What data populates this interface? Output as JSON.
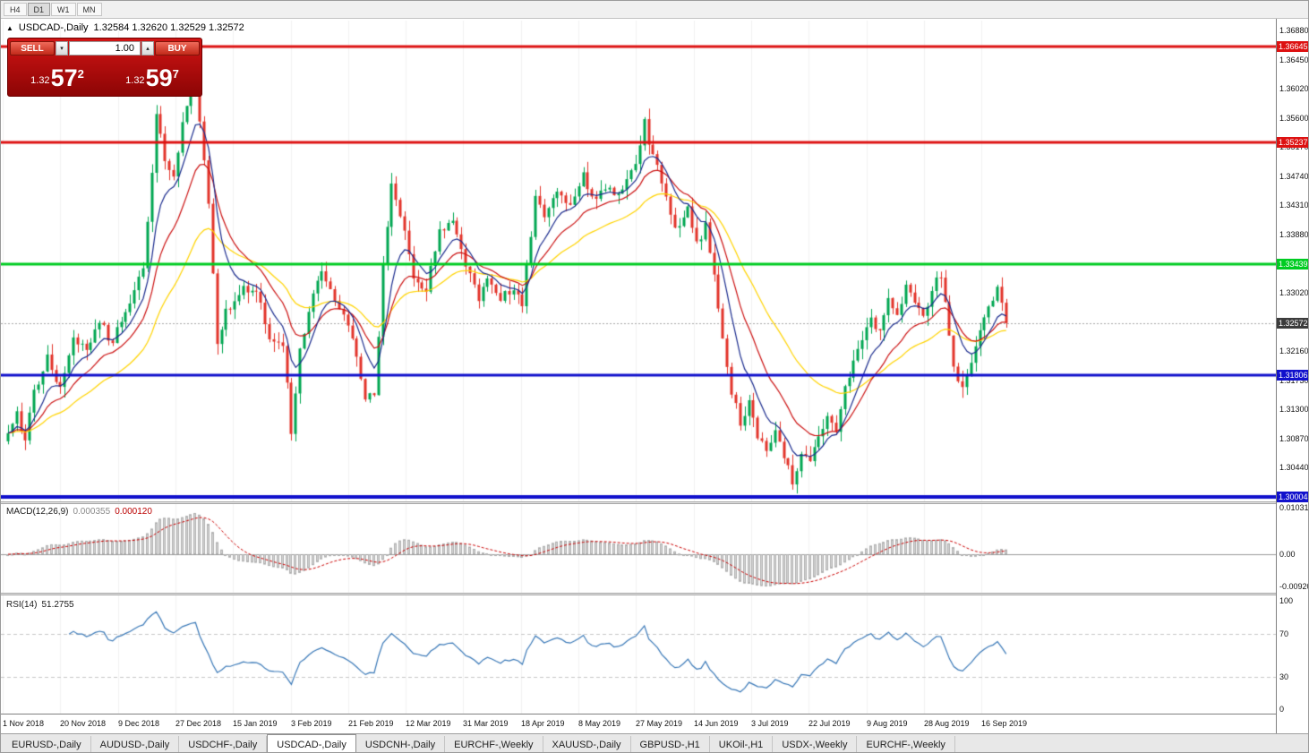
{
  "icons": {
    "symbol_arrow": "▲",
    "volume_down": "▾",
    "volume_up": "▴"
  },
  "colors": {
    "bull": "#00a651",
    "bear": "#e3342a",
    "background": "#ffffff",
    "macd_hist": "#d4d4d4",
    "macd_signal": "#cc0000",
    "rsi_line": "#3a79b8",
    "resistance_red": "#dd1111",
    "support_green": "#00cc22",
    "support_blue": "#1111cc",
    "current_price_tag": "#3c3c3c"
  },
  "toolbar": {
    "timeframes": [
      {
        "label": "H4",
        "active": false
      },
      {
        "label": "D1",
        "active": true
      },
      {
        "label": "W1",
        "active": false
      },
      {
        "label": "MN",
        "active": false
      }
    ]
  },
  "chart": {
    "title_symbol": "USDCAD-,Daily",
    "title_ohlc": "1.32584 1.32620 1.32529 1.32572",
    "trade_panel": {
      "sell_label": "SELL",
      "buy_label": "BUY",
      "volume": "1.00",
      "sell_price": {
        "prefix": "1.32",
        "big": "57",
        "sup": "2"
      },
      "buy_price": {
        "prefix": "1.32",
        "big": "59",
        "sup": "7"
      }
    },
    "price_axis": {
      "ticks": [
        "1.36880",
        "1.36450",
        "1.36020",
        "1.35600",
        "1.35170",
        "1.34740",
        "1.34310",
        "1.33880",
        "1.33450",
        "1.33020",
        "1.32590",
        "1.32160",
        "1.31730",
        "1.31300",
        "1.30870",
        "1.30440",
        "1.30010"
      ]
    },
    "levels": [
      {
        "label": "1.36645",
        "price": 1.36645,
        "color": "#dd1111",
        "thickness": 3
      },
      {
        "label": "1.35237",
        "price": 1.35237,
        "color": "#dd1111",
        "thickness": 3
      },
      {
        "label": "1.33439",
        "price": 1.33439,
        "color": "#00cc22",
        "thickness": 3
      },
      {
        "label": "1.31806",
        "price": 1.31806,
        "color": "#1111cc",
        "thickness": 3
      },
      {
        "label": "1.30004",
        "price": 1.30004,
        "color": "#1111cc",
        "thickness": 4
      }
    ],
    "current_price": {
      "label": "1.32572",
      "price": 1.32572
    },
    "indicators": {
      "macd": {
        "name": "MACD(12,26,9)",
        "main_value": "0.000355",
        "signal_value": "0.000120",
        "axis": [
          "0.010311",
          "0.00",
          "-0.009203"
        ],
        "params": {
          "fast": 12,
          "slow": 26,
          "signal": 9
        }
      },
      "rsi": {
        "name": "RSI(14)",
        "value": "51.2755",
        "axis": [
          "100",
          "70",
          "30",
          "0"
        ],
        "levels": [
          70,
          30
        ],
        "period": 14
      }
    },
    "dates": [
      "1 Nov 2018",
      "20 Nov 2018",
      "9 Dec 2018",
      "27 Dec 2018",
      "15 Jan 2019",
      "3 Feb 2019",
      "21 Feb 2019",
      "12 Mar 2019",
      "31 Mar 2019",
      "18 Apr 2019",
      "8 May 2019",
      "27 May 2019",
      "14 Jun 2019",
      "3 Jul 2019",
      "22 Jul 2019",
      "9 Aug 2019",
      "28 Aug 2019",
      "16 Sep 2019"
    ],
    "chart_data": {
      "type": "candlestick",
      "symbol": "USDCAD",
      "timeframe": "Daily",
      "x_range": [
        "1 Nov 2018",
        "27 Sep 2019"
      ],
      "y_range": [
        1.296,
        1.37
      ],
      "candle_count": 230,
      "last_close": 1.32572,
      "close_anchors": [
        [
          0,
          1.3095
        ],
        [
          2,
          1.313
        ],
        [
          4,
          1.308
        ],
        [
          6,
          1.315
        ],
        [
          9,
          1.32
        ],
        [
          12,
          1.317
        ],
        [
          15,
          1.323
        ],
        [
          18,
          1.321
        ],
        [
          21,
          1.326
        ],
        [
          24,
          1.322
        ],
        [
          27,
          1.328
        ],
        [
          31,
          1.333
        ],
        [
          34,
          1.356
        ],
        [
          36,
          1.35
        ],
        [
          38,
          1.348
        ],
        [
          40,
          1.356
        ],
        [
          43,
          1.3625
        ],
        [
          44,
          1.356
        ],
        [
          46,
          1.343
        ],
        [
          48,
          1.323
        ],
        [
          50,
          1.327
        ],
        [
          54,
          1.331
        ],
        [
          58,
          1.329
        ],
        [
          60,
          1.324
        ],
        [
          63,
          1.323
        ],
        [
          65,
          1.31
        ],
        [
          67,
          1.323
        ],
        [
          72,
          1.333
        ],
        [
          76,
          1.329
        ],
        [
          79,
          1.324
        ],
        [
          82,
          1.3135
        ],
        [
          84,
          1.315
        ],
        [
          86,
          1.334
        ],
        [
          88,
          1.346
        ],
        [
          90,
          1.342
        ],
        [
          93,
          1.333
        ],
        [
          96,
          1.331
        ],
        [
          99,
          1.339
        ],
        [
          102,
          1.342
        ],
        [
          105,
          1.335
        ],
        [
          108,
          1.329
        ],
        [
          110,
          1.333
        ],
        [
          113,
          1.33
        ],
        [
          116,
          1.331
        ],
        [
          118,
          1.329
        ],
        [
          121,
          1.344
        ],
        [
          123,
          1.341
        ],
        [
          126,
          1.346
        ],
        [
          129,
          1.343
        ],
        [
          132,
          1.347
        ],
        [
          134,
          1.344
        ],
        [
          137,
          1.346
        ],
        [
          140,
          1.344
        ],
        [
          142,
          1.347
        ],
        [
          144,
          1.349
        ],
        [
          146,
          1.3555
        ],
        [
          147,
          1.351
        ],
        [
          149,
          1.348
        ],
        [
          151,
          1.344
        ],
        [
          153,
          1.34
        ],
        [
          156,
          1.342
        ],
        [
          158,
          1.337
        ],
        [
          160,
          1.34
        ],
        [
          162,
          1.333
        ],
        [
          164,
          1.323
        ],
        [
          166,
          1.316
        ],
        [
          168,
          1.311
        ],
        [
          170,
          1.314
        ],
        [
          172,
          1.308
        ],
        [
          174,
          1.307
        ],
        [
          176,
          1.311
        ],
        [
          178,
          1.305
        ],
        [
          180,
          1.302
        ],
        [
          182,
          1.306
        ],
        [
          184,
          1.304
        ],
        [
          186,
          1.308
        ],
        [
          188,
          1.312
        ],
        [
          190,
          1.309
        ],
        [
          192,
          1.315
        ],
        [
          194,
          1.319
        ],
        [
          196,
          1.323
        ],
        [
          198,
          1.327
        ],
        [
          200,
          1.325
        ],
        [
          202,
          1.33
        ],
        [
          204,
          1.327
        ],
        [
          206,
          1.331
        ],
        [
          208,
          1.329
        ],
        [
          210,
          1.326
        ],
        [
          212,
          1.331
        ],
        [
          214,
          1.333
        ],
        [
          215,
          1.329
        ],
        [
          217,
          1.319
        ],
        [
          219,
          1.3155
        ],
        [
          221,
          1.32
        ],
        [
          223,
          1.324
        ],
        [
          225,
          1.327
        ],
        [
          227,
          1.33
        ],
        [
          229,
          1.32572
        ]
      ],
      "moving_averages": [
        {
          "color": "#1a2b8e",
          "period": 8
        },
        {
          "color": "#cc1111",
          "period": 16
        },
        {
          "color": "#ffd400",
          "period": 34
        }
      ]
    }
  },
  "tabs": [
    {
      "label": "EURUSD-,Daily",
      "active": false
    },
    {
      "label": "AUDUSD-,Daily",
      "active": false
    },
    {
      "label": "USDCHF-,Daily",
      "active": false
    },
    {
      "label": "USDCAD-,Daily",
      "active": true
    },
    {
      "label": "USDCNH-,Daily",
      "active": false
    },
    {
      "label": "EURCHF-,Weekly",
      "active": false
    },
    {
      "label": "XAUUSD-,Daily",
      "active": false
    },
    {
      "label": "GBPUSD-,H1",
      "active": false
    },
    {
      "label": "UKOil-,H1",
      "active": false
    },
    {
      "label": "USDX-,Weekly",
      "active": false
    },
    {
      "label": "EURCHF-,Weekly",
      "active": false
    }
  ]
}
